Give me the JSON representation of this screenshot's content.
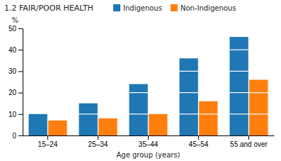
{
  "chart_data": {
    "type": "bar",
    "title": "1.2 FAIR/POOR HEALTH",
    "xlabel": "Age group (years)",
    "ylabel": "%",
    "categories": [
      "15–24",
      "25–34",
      "35–44",
      "45–54",
      "55 and over"
    ],
    "series": [
      {
        "name": "Indigenous",
        "values": [
          10,
          15,
          24,
          36,
          46
        ]
      },
      {
        "name": "Non-Indigenous",
        "values": [
          7,
          8,
          10,
          16,
          26
        ]
      }
    ],
    "ylim": [
      0,
      50
    ],
    "yticks": [
      0,
      10,
      20,
      30,
      40,
      50
    ],
    "legend": "top",
    "grid": false
  }
}
